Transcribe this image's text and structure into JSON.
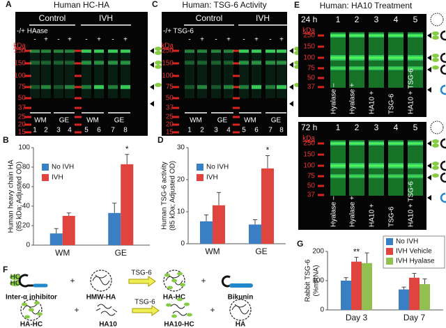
{
  "panels": {
    "A": {
      "letter": "A",
      "title": "Human HC-HA",
      "groups": [
        "Control",
        "IVH"
      ],
      "treatment": "-/+ HAase",
      "signs": [
        "-",
        "+",
        "-",
        "+",
        "-",
        "+",
        "-",
        "+"
      ],
      "kda_unit": "kDa",
      "kda": [
        250,
        150,
        100,
        75,
        50,
        37,
        25,
        20,
        15
      ],
      "regions": [
        "WM",
        "GE",
        "WM",
        "GE"
      ],
      "lanes": [
        1,
        2,
        3,
        4,
        5,
        6,
        7,
        8
      ]
    },
    "C": {
      "letter": "C",
      "title": "Human: TSG-6 Activity",
      "groups": [
        "Control",
        "IVH"
      ],
      "treatment": "-/+ TSG-6",
      "signs": [
        "-",
        "+",
        "-",
        "+",
        "-",
        "+",
        "-",
        "+"
      ],
      "kda_unit": "kDa",
      "kda": [
        250,
        150,
        100,
        75,
        50,
        37,
        25,
        20,
        15
      ],
      "regions": [
        "WM",
        "GE",
        "WM",
        "GE"
      ],
      "lanes": [
        1,
        2,
        3,
        4,
        5,
        6,
        7,
        8
      ]
    },
    "E": {
      "letter": "E",
      "title": "Human: HA10 Treatment",
      "kda_unit": "kDa",
      "lanes": [
        1,
        2,
        3,
        4,
        5
      ],
      "lane_labels": [
        "Hyalase –",
        "Hyalase +",
        "HA10 +",
        "TSG-6",
        "HA10 + TSG-6"
      ],
      "blots": [
        {
          "time": "24 h",
          "kda": [
            250,
            150,
            100,
            75,
            50,
            37
          ]
        },
        {
          "time": "72 h",
          "kda": [
            250,
            150,
            100,
            75,
            50,
            37
          ]
        }
      ]
    },
    "F": {
      "letter": "F",
      "hc": "HC",
      "plus": "+",
      "enzyme": "TSG-6",
      "row1": [
        "Inter-α inhibitor",
        "HMW-HA",
        "HA-HC",
        "Bikunin"
      ],
      "row2": [
        "HA-HC",
        "HA10",
        "HA10-HC",
        "HA"
      ]
    }
  },
  "chart_data": [
    {
      "type": "bar",
      "panel": "B",
      "ylabel": [
        "Human heavy chain HA",
        "(85 kDa; Adjusted OD)"
      ],
      "categories": [
        "WM",
        "GE"
      ],
      "series": [
        {
          "name": "No IVH",
          "color": "#3a7fc4",
          "values": [
            12,
            33
          ],
          "errors": [
            5,
            10
          ]
        },
        {
          "name": "IVH",
          "color": "#e0443f",
          "values": [
            30,
            83
          ],
          "errors": [
            3,
            10
          ]
        }
      ],
      "ylim": [
        0,
        100
      ],
      "yticks": [
        0,
        20,
        40,
        60,
        80,
        100
      ],
      "legend": "top-left",
      "annotations": [
        {
          "text": "*",
          "category": "GE",
          "series": "IVH"
        }
      ]
    },
    {
      "type": "bar",
      "panel": "D",
      "ylabel": [
        "Human TSG-6 activity",
        "(85 kDa; Adjusted OD)"
      ],
      "categories": [
        "WM",
        "GE"
      ],
      "series": [
        {
          "name": "No IVH",
          "color": "#3a7fc4",
          "values": [
            7,
            6
          ],
          "errors": [
            2,
            1.5
          ]
        },
        {
          "name": "IVH",
          "color": "#e0443f",
          "values": [
            12,
            23.5
          ],
          "errors": [
            4,
            4
          ]
        }
      ],
      "ylim": [
        0,
        30
      ],
      "yticks": [
        0,
        10,
        20,
        30
      ],
      "legend": "top-left",
      "annotations": [
        {
          "text": "*",
          "category": "GE",
          "series": "IVH"
        }
      ]
    },
    {
      "type": "bar",
      "panel": "G",
      "ylabel": [
        "Rabbit TSG-6",
        "(%mRNA)"
      ],
      "categories": [
        "Day 3",
        "Day 7"
      ],
      "series": [
        {
          "name": "No IVH",
          "color": "#3a7fc4",
          "values": [
            100,
            70
          ],
          "errors": [
            10,
            8
          ]
        },
        {
          "name": "IVH Vehicle",
          "color": "#e0443f",
          "values": [
            165,
            110
          ],
          "errors": [
            15,
            15
          ]
        },
        {
          "name": "IVH Hyalase",
          "color": "#92c050",
          "values": [
            160,
            88
          ],
          "errors": [
            35,
            18
          ]
        }
      ],
      "ylim": [
        0,
        200
      ],
      "yticks": [
        0,
        100,
        200
      ],
      "legend": "top-right",
      "annotations": [
        {
          "text": "**",
          "category": "Day 3",
          "series": "IVH Vehicle"
        }
      ]
    }
  ]
}
